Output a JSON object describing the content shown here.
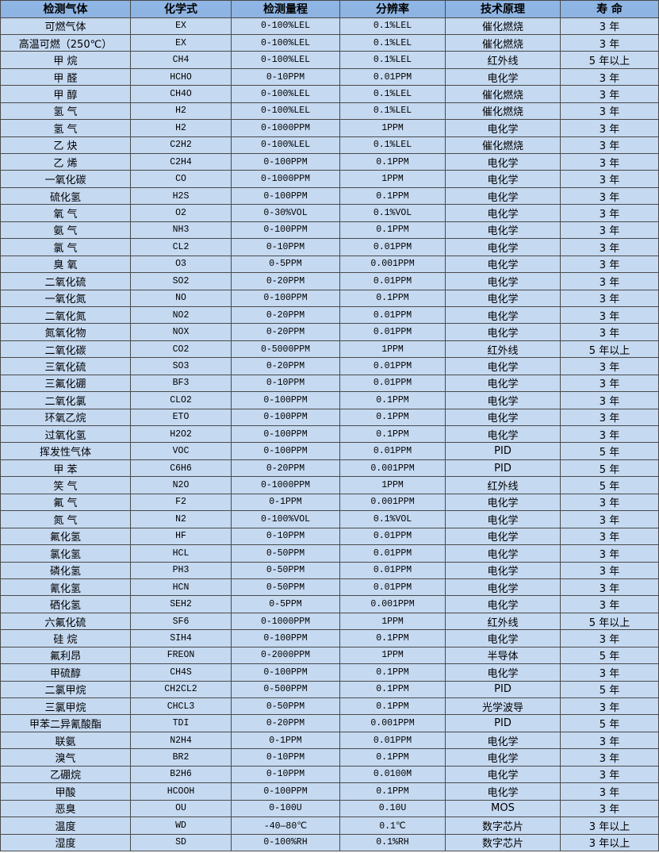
{
  "colors": {
    "header_bg": "#8db3e2",
    "row_bg": "#c5d9f1",
    "border": "#4a4a4a"
  },
  "headers": [
    "检测气体",
    "化学式",
    "检测量程",
    "分辨率",
    "技术原理",
    "寿 命"
  ],
  "rows": [
    [
      "可燃气体",
      "EX",
      "0-100%LEL",
      "0.1%LEL",
      "催化燃烧",
      "3 年"
    ],
    [
      "高温可燃（250℃）",
      "EX",
      "0-100%LEL",
      "0.1%LEL",
      "催化燃烧",
      "3 年"
    ],
    [
      "甲 烷",
      "CH4",
      "0-100%LEL",
      "0.1%LEL",
      "红外线",
      "5 年以上"
    ],
    [
      "甲 醛",
      "HCHO",
      "0-10PPM",
      "0.01PPM",
      "电化学",
      "3 年"
    ],
    [
      "甲 醇",
      "CH4O",
      "0-100%LEL",
      "0.1%LEL",
      "催化燃烧",
      "3 年"
    ],
    [
      "氢 气",
      "H2",
      "0-100%LEL",
      "0.1%LEL",
      "催化燃烧",
      "3 年"
    ],
    [
      "氢 气",
      "H2",
      "0-1000PPM",
      "1PPM",
      "电化学",
      "3 年"
    ],
    [
      "乙 炔",
      "C2H2",
      "0-100%LEL",
      "0.1%LEL",
      "催化燃烧",
      "3 年"
    ],
    [
      "乙 烯",
      "C2H4",
      "0-100PPM",
      "0.1PPM",
      "电化学",
      "3 年"
    ],
    [
      "一氧化碳",
      "CO",
      "0-1000PPM",
      "1PPM",
      "电化学",
      "3 年"
    ],
    [
      "硫化氢",
      "H2S",
      "0-100PPM",
      "0.1PPM",
      "电化学",
      "3 年"
    ],
    [
      "氧 气",
      "O2",
      "0-30%VOL",
      "0.1%VOL",
      "电化学",
      "3 年"
    ],
    [
      "氨 气",
      "NH3",
      "0-100PPM",
      "0.1PPM",
      "电化学",
      "3 年"
    ],
    [
      "氯 气",
      "CL2",
      "0-10PPM",
      "0.01PPM",
      "电化学",
      "3 年"
    ],
    [
      "臭 氧",
      "O3",
      "0-5PPM",
      "0.001PPM",
      "电化学",
      "3 年"
    ],
    [
      "二氧化硫",
      "SO2",
      "0-20PPM",
      "0.01PPM",
      "电化学",
      "3 年"
    ],
    [
      "一氧化氮",
      "NO",
      "0-100PPM",
      "0.1PPM",
      "电化学",
      "3 年"
    ],
    [
      "二氧化氮",
      "NO2",
      "0-20PPM",
      "0.01PPM",
      "电化学",
      "3 年"
    ],
    [
      "氮氧化物",
      "NOX",
      "0-20PPM",
      "0.01PPM",
      "电化学",
      "3 年"
    ],
    [
      "二氧化碳",
      "CO2",
      "0-5000PPM",
      "1PPM",
      "红外线",
      "5 年以上"
    ],
    [
      "三氧化硫",
      "SO3",
      "0-20PPM",
      "0.01PPM",
      "电化学",
      "3 年"
    ],
    [
      "三氟化硼",
      "BF3",
      "0-10PPM",
      "0.01PPM",
      "电化学",
      "3 年"
    ],
    [
      "二氧化氯",
      "CLO2",
      "0-100PPM",
      "0.1PPM",
      "电化学",
      "3 年"
    ],
    [
      "环氧乙烷",
      "ETO",
      "0-100PPM",
      "0.1PPM",
      "电化学",
      "3 年"
    ],
    [
      "过氧化氢",
      "H2O2",
      "0-100PPM",
      "0.1PPM",
      "电化学",
      "3 年"
    ],
    [
      "挥发性气体",
      "VOC",
      "0-100PPM",
      "0.01PPM",
      "PID",
      "5 年"
    ],
    [
      "甲 苯",
      "C6H6",
      "0-20PPM",
      "0.001PPM",
      "PID",
      "5 年"
    ],
    [
      "笑 气",
      "N2O",
      "0-1000PPM",
      "1PPM",
      "红外线",
      "5 年"
    ],
    [
      "氟 气",
      "F2",
      "0-1PPM",
      "0.001PPM",
      "电化学",
      "3 年"
    ],
    [
      "氮 气",
      "N2",
      "0-100%VOL",
      "0.1%VOL",
      "电化学",
      "3 年"
    ],
    [
      "氟化氢",
      "HF",
      "0-10PPM",
      "0.01PPM",
      "电化学",
      "3 年"
    ],
    [
      "氯化氢",
      "HCL",
      "0-50PPM",
      "0.01PPM",
      "电化学",
      "3 年"
    ],
    [
      "磷化氢",
      "PH3",
      "0-50PPM",
      "0.01PPM",
      "电化学",
      "3 年"
    ],
    [
      "氰化氢",
      "HCN",
      "0-50PPM",
      "0.01PPM",
      "电化学",
      "3 年"
    ],
    [
      "硒化氢",
      "SEH2",
      "0-5PPM",
      "0.001PPM",
      "电化学",
      "3 年"
    ],
    [
      "六氟化硫",
      "SF6",
      "0-1000PPM",
      "1PPM",
      "红外线",
      "5 年以上"
    ],
    [
      "硅 烷",
      "SIH4",
      "0-100PPM",
      "0.1PPM",
      "电化学",
      "3 年"
    ],
    [
      "氟利昂",
      "FREON",
      "0-2000PPM",
      "1PPM",
      "半导体",
      "5 年"
    ],
    [
      "甲硫醇",
      "CH4S",
      "0-100PPM",
      "0.1PPM",
      "电化学",
      "3 年"
    ],
    [
      "二氯甲烷",
      "CH2CL2",
      "0-500PPM",
      "0.1PPM",
      "PID",
      "5 年"
    ],
    [
      "三氯甲烷",
      "CHCL3",
      "0-50PPM",
      "0.1PPM",
      "光学波导",
      "3 年"
    ],
    [
      "甲苯二异氰酸酯",
      "TDI",
      "0-20PPM",
      "0.001PPM",
      "PID",
      "5 年"
    ],
    [
      "联氨",
      "N2H4",
      "0-1PPM",
      "0.01PPM",
      "电化学",
      "3 年"
    ],
    [
      "溴气",
      "BR2",
      "0-10PPM",
      "0.1PPM",
      "电化学",
      "3 年"
    ],
    [
      "乙硼烷",
      "B2H6",
      "0-10PPM",
      "0.0100M",
      "电化学",
      "3 年"
    ],
    [
      "甲酸",
      "HCOOH",
      "0-100PPM",
      "0.1PPM",
      "电化学",
      "3 年"
    ],
    [
      "恶臭",
      "OU",
      "0-100U",
      "0.10U",
      "MOS",
      "3 年"
    ],
    [
      "温度",
      "WD",
      "-40—80℃",
      "0.1℃",
      "数字芯片",
      "3 年以上"
    ],
    [
      "湿度",
      "SD",
      "0-100%RH",
      "0.1%RH",
      "数字芯片",
      "3 年以上"
    ]
  ]
}
